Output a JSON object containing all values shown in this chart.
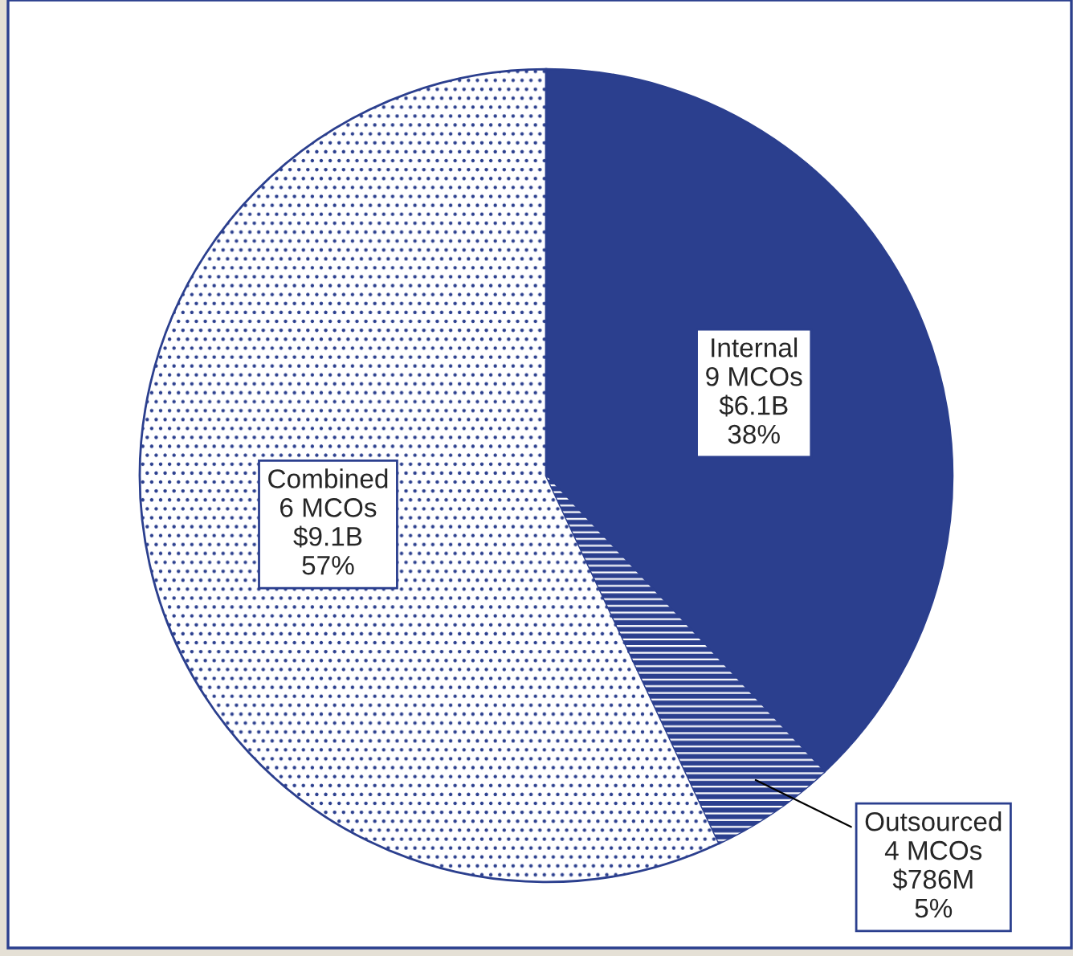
{
  "chart_data": {
    "type": "pie",
    "categories": [
      "Internal",
      "Outsourced",
      "Combined"
    ],
    "values": [
      38,
      5,
      57
    ],
    "value_labels": [
      "9 MCOs\n$6.1B\n38%",
      "4 MCOs\n$786M\n5%",
      "6 MCOs\n$9.1B\n57%"
    ],
    "colors": [
      "#2b3f8e",
      "#2b3f8e",
      "#ffffff"
    ],
    "legend": false
  }
}
